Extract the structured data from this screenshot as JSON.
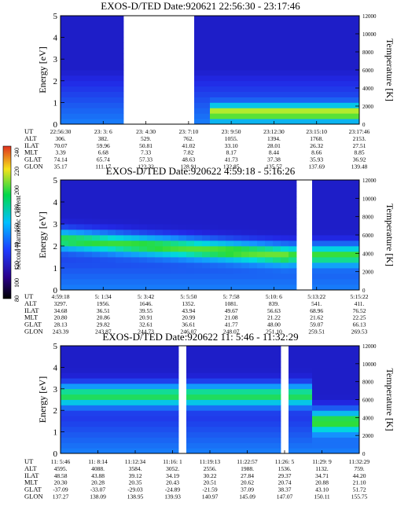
{
  "colorbar": {
    "label": "Second Harmonic Current",
    "ticks": [
      "240",
      "220",
      "200",
      "180",
      "160",
      "140",
      "120",
      "100",
      "80"
    ],
    "stops": [
      "#e0301e",
      "#f5e21a",
      "#00d84b",
      "#00c0ff",
      "#1e3cff",
      "#2a008a",
      "#000000"
    ]
  },
  "chart_data": [
    {
      "type": "heatmap",
      "title": "EXOS-D/TED   Date:920621  22:56:30 - 23:17:46",
      "ylabel": "Energy [eV]",
      "ylabel_right": "Temperature [K]",
      "ylim": [
        0,
        5
      ],
      "yticks": [
        "0",
        "1",
        "2",
        "3",
        "4",
        "5"
      ],
      "ylim_right": [
        0,
        12000
      ],
      "yticks_right": [
        "0",
        "2000",
        "4000",
        "6000",
        "8000",
        "10000",
        "12000"
      ],
      "gaps": [
        [
          0.22,
          0.44
        ]
      ],
      "band": {
        "y0": 0.55,
        "y1": 0.55,
        "from": 0.5,
        "to": 1.0,
        "y_end": 1.0,
        "w": 0.35
      },
      "table_labels": [
        "UT",
        "ALT",
        "ILAT",
        "MLT",
        "GLAT",
        "GLON"
      ],
      "columns": [
        [
          "22:56:30",
          "306.",
          "70.07",
          "3.39",
          "74.14",
          "35.17"
        ],
        [
          "23: 3: 6",
          "382.",
          "59.96",
          "6.68",
          "65.74",
          "111.17"
        ],
        [
          "23: 4:30",
          "529.",
          "50.81",
          "7.33",
          "57.33",
          "122.32"
        ],
        [
          "23: 7:10",
          "762.",
          "41.02",
          "7.82",
          "48.63",
          "128.91"
        ],
        [
          "23: 9:50",
          "1055.",
          "33.10",
          "8.17",
          "41.73",
          "132.85"
        ],
        [
          "23:12:30",
          "1394.",
          "28.01",
          "8.44",
          "37.38",
          "135.57"
        ],
        [
          "23:15:10",
          "1768.",
          "26.32",
          "8.66",
          "35.93",
          "137.69"
        ],
        [
          "23:17:46",
          "2153.",
          "27.51",
          "8.85",
          "36.92",
          "139.48"
        ]
      ]
    },
    {
      "type": "heatmap",
      "title": "EXOS-D/TED   Date:920622  4:59:18 - 5:16:26",
      "ylabel": "Energy [eV]",
      "ylabel_right": "Temperature [K]",
      "ylim": [
        0,
        5
      ],
      "yticks": [
        "0",
        "1",
        "2",
        "3",
        "4",
        "5"
      ],
      "ylim_right": [
        0,
        12000
      ],
      "yticks_right": [
        "0",
        "2000",
        "4000",
        "6000",
        "8000",
        "10000",
        "12000"
      ],
      "gaps": [
        [
          0.785,
          0.83
        ]
      ],
      "band": {
        "y0": 2.3,
        "y1": 1.6,
        "from": 0.0,
        "to": 0.75,
        "y_end": 1.6,
        "w": 0.45
      },
      "table_labels": [
        "UT",
        "ALT",
        "ILAT",
        "MLT",
        "GLAT",
        "GLON"
      ],
      "columns": [
        [
          "4:59:18",
          "3297.",
          "34.68",
          "20.80",
          "28.13",
          "243.39"
        ],
        [
          "5: 1:34",
          "1956.",
          "36.51",
          "20.86",
          "29.82",
          "243.87"
        ],
        [
          "5: 3:42",
          "1646.",
          "39.55",
          "20.91",
          "32.61",
          "244.73"
        ],
        [
          "5: 5:50",
          "1352.",
          "43.94",
          "20.99",
          "36.61",
          "246.07"
        ],
        [
          "5: 7:58",
          "1081.",
          "49.67",
          "21.08",
          "41.77",
          "248.07"
        ],
        [
          "5:10: 6",
          "839.",
          "56.63",
          "21.22",
          "48.00",
          "251.10"
        ],
        [
          "5:13:22",
          "541.",
          "68.96",
          "21.62",
          "59.07",
          "259.51"
        ],
        [
          "5:15:22",
          "411.",
          "76.52",
          "22.25",
          "66.13",
          "269.53"
        ]
      ]
    },
    {
      "type": "heatmap",
      "title": "EXOS-D/TED   Date:920622  11: 5:46 - 11:32:29",
      "ylabel": "Energy [eV]",
      "ylabel_right": "Temperature [K]",
      "ylim": [
        0,
        5
      ],
      "yticks": [
        "0",
        "1",
        "2",
        "3",
        "4",
        "5"
      ],
      "ylim_right": [
        0,
        12000
      ],
      "yticks_right": [
        "0",
        "2000",
        "4000",
        "6000",
        "8000",
        "10000",
        "12000"
      ],
      "gaps": [
        [
          0.395,
          0.425
        ],
        [
          0.735,
          0.755
        ]
      ],
      "band": {
        "y0": 2.7,
        "y1": 2.7,
        "from": 0.0,
        "to": 0.85,
        "y_end": 1.5,
        "w": 0.5
      },
      "table_labels": [
        "UT",
        "ALT",
        "ILAT",
        "MLT",
        "GLAT",
        "GLON"
      ],
      "columns": [
        [
          "11: 5:46",
          "4595.",
          "48.58",
          "20.30",
          "-37.09",
          "137.27"
        ],
        [
          "11: 8:14",
          "4088.",
          "43.88",
          "20.28",
          "-33.07",
          "138.09"
        ],
        [
          "11:12:34",
          "3584.",
          "39.12",
          "20.35",
          "-29.03",
          "138.95"
        ],
        [
          "11:16: 1",
          "3052.",
          "34.19",
          "20.43",
          "-24.89",
          "139.93"
        ],
        [
          "11:19:13",
          "2556.",
          "30.22",
          "20.51",
          "-21.59",
          "140.97"
        ],
        [
          "11:22:57",
          "1988.",
          "27.84",
          "20.62",
          "37.09",
          "145.09"
        ],
        [
          "11:26: 5",
          "1536.",
          "29.37",
          "20.74",
          "38.37",
          "147.07"
        ],
        [
          "11:29: 9",
          "1132.",
          "34.71",
          "20.88",
          "43.10",
          "150.11"
        ],
        [
          "11:32:29",
          "759.",
          "44.20",
          "21.10",
          "51.72",
          "155.75"
        ]
      ]
    }
  ]
}
